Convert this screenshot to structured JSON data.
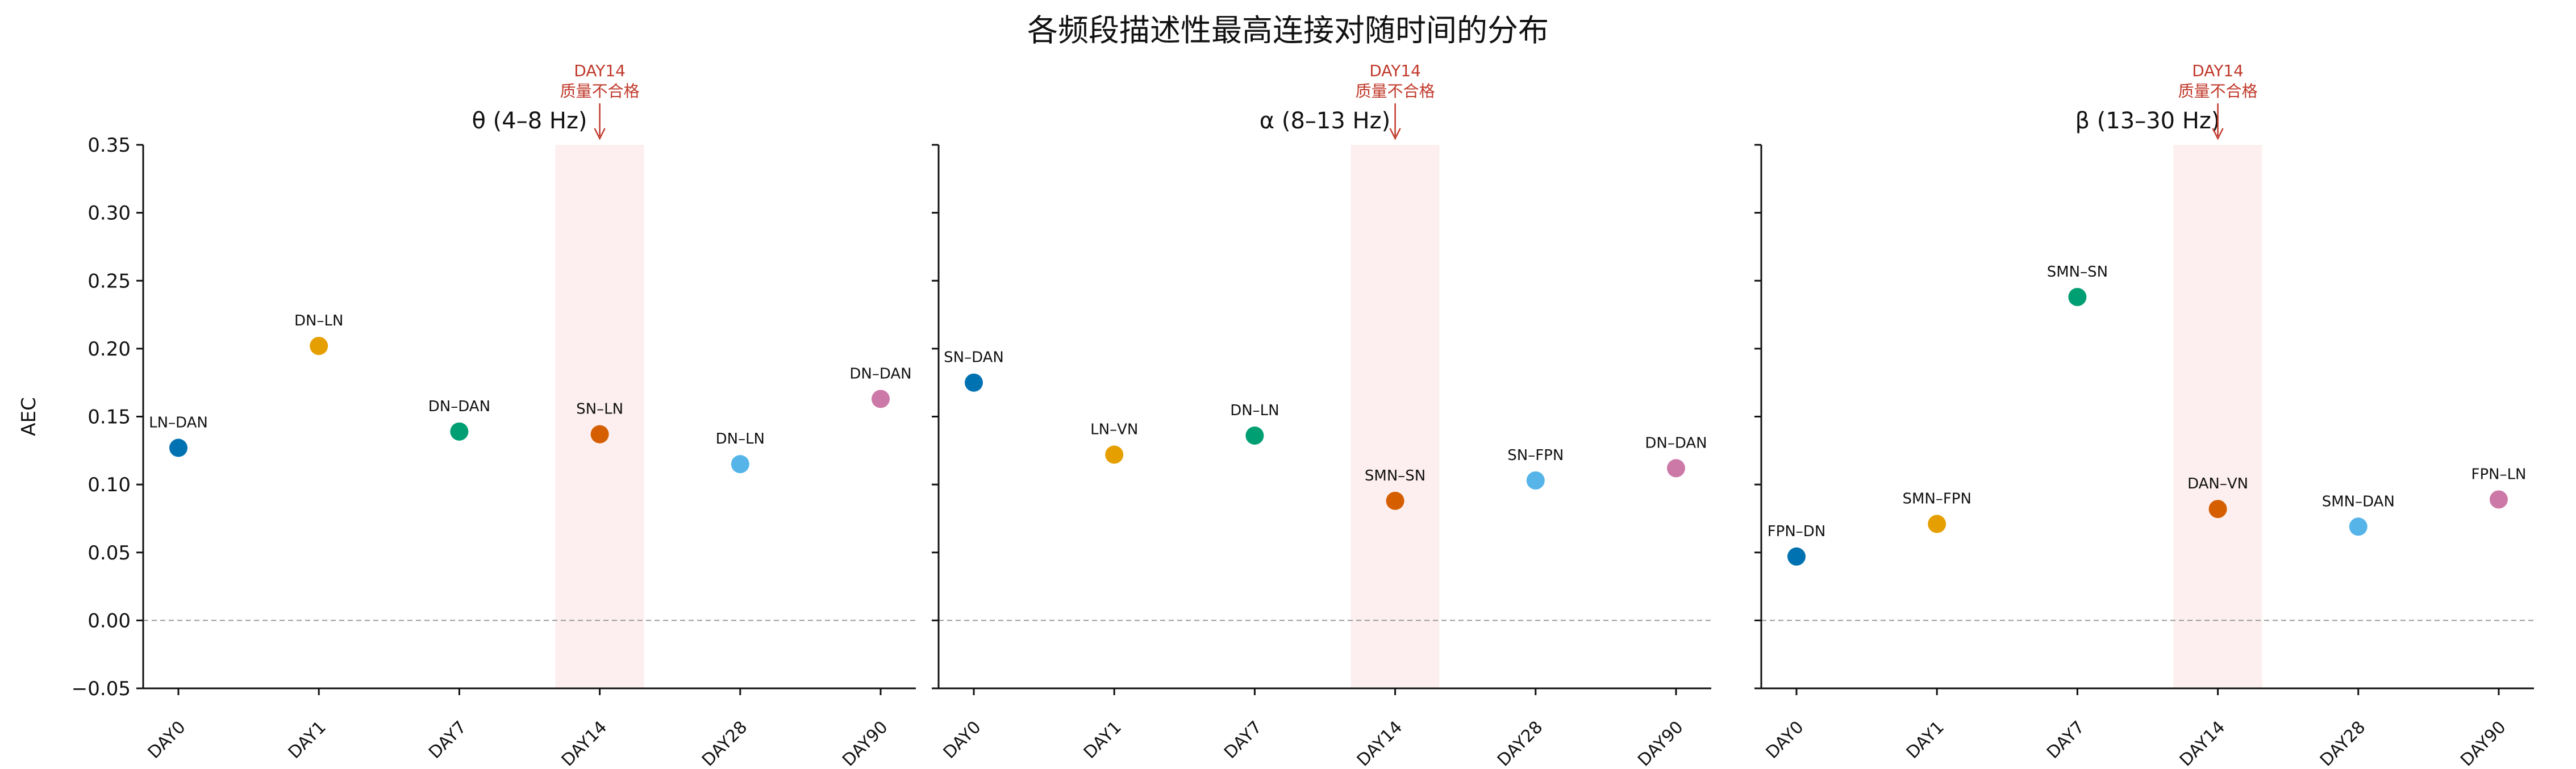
{
  "figure": {
    "title": "各频段描述性最高连接对随时间的分布"
  },
  "colors": {
    "points": [
      "#0072b2",
      "#e69f00",
      "#009e73",
      "#d55e00",
      "#56b4e9",
      "#cc79a7"
    ],
    "highlight_band": "#fbe4e4",
    "annotation": "#c0392b",
    "zero_line": "#999999"
  },
  "chart_data": [
    {
      "type": "scatter",
      "title": "θ (4–8 Hz)",
      "ylabel": "AEC",
      "categories": [
        "DAY0",
        "DAY1",
        "DAY7",
        "DAY14",
        "DAY28",
        "DAY90"
      ],
      "values": [
        0.127,
        0.202,
        0.139,
        0.137,
        0.115,
        0.163
      ],
      "point_labels": [
        "LN–DAN",
        "DN–LN",
        "DN–DAN",
        "SN–LN",
        "DN–LN",
        "DN–DAN"
      ],
      "ylim": [
        -0.05,
        0.35
      ],
      "yticks": [
        "−0.05",
        "0.00",
        "0.05",
        "0.10",
        "0.15",
        "0.20",
        "0.25",
        "0.30",
        "0.35"
      ],
      "zero_line": true,
      "highlight": {
        "category": "DAY14",
        "label_line1": "DAY14",
        "label_line2": "质量不合格"
      }
    },
    {
      "type": "scatter",
      "title": "α (8–13 Hz)",
      "categories": [
        "DAY0",
        "DAY1",
        "DAY7",
        "DAY14",
        "DAY28",
        "DAY90"
      ],
      "values": [
        0.175,
        0.122,
        0.136,
        0.088,
        0.103,
        0.112
      ],
      "point_labels": [
        "SN–DAN",
        "LN–VN",
        "DN–LN",
        "SMN–SN",
        "SN–FPN",
        "DN–DAN"
      ],
      "ylim": [
        -0.05,
        0.35
      ],
      "zero_line": true,
      "highlight": {
        "category": "DAY14",
        "label_line1": "DAY14",
        "label_line2": "质量不合格"
      }
    },
    {
      "type": "scatter",
      "title": "β (13–30 Hz)",
      "categories": [
        "DAY0",
        "DAY1",
        "DAY7",
        "DAY14",
        "DAY28",
        "DAY90"
      ],
      "values": [
        0.047,
        0.071,
        0.238,
        0.082,
        0.069,
        0.089
      ],
      "point_labels": [
        "FPN–DN",
        "SMN–FPN",
        "SMN–SN",
        "DAN–VN",
        "SMN–DAN",
        "FPN–LN"
      ],
      "ylim": [
        -0.05,
        0.35
      ],
      "zero_line": true,
      "highlight": {
        "category": "DAY14",
        "label_line1": "DAY14",
        "label_line2": "质量不合格"
      }
    }
  ]
}
